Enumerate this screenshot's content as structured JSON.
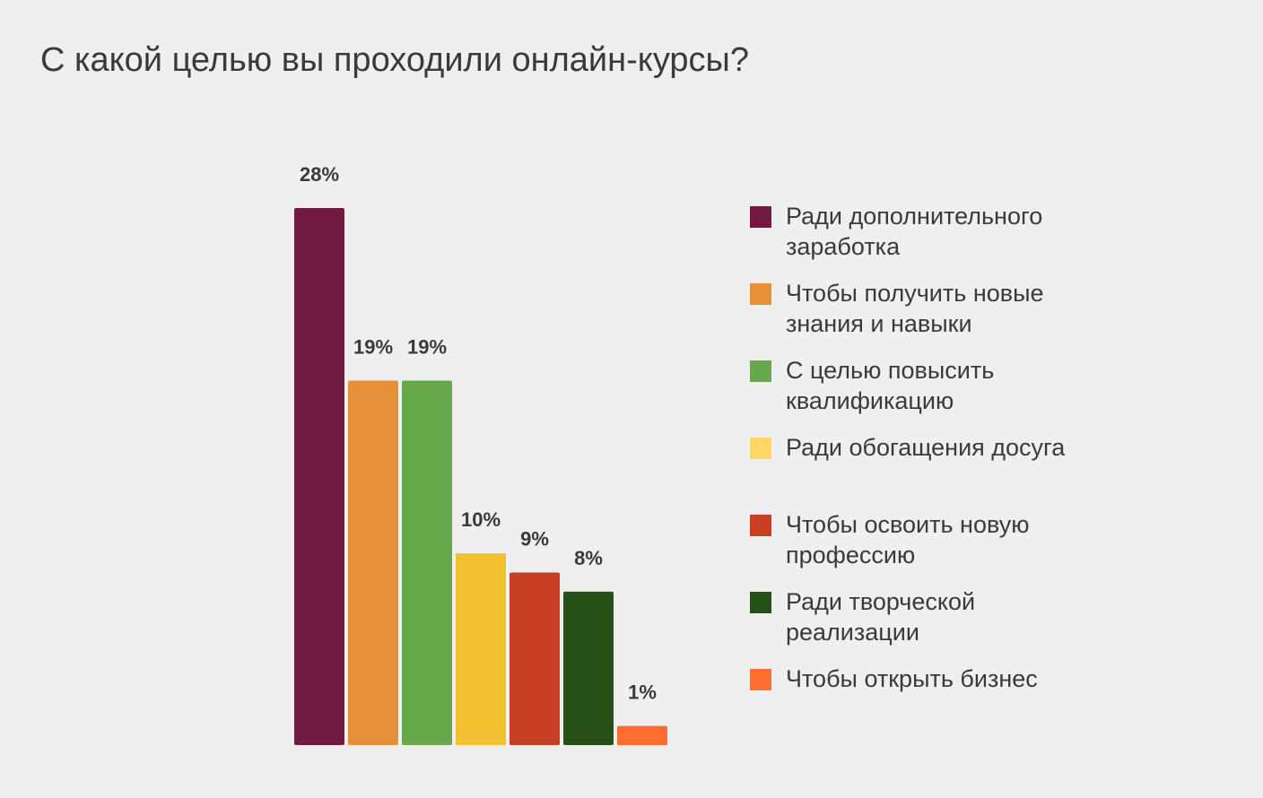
{
  "chart_data": {
    "type": "bar",
    "title": "С какой целью вы проходили онлайн-курсы?",
    "categories": [
      "Ради дополнительного заработка",
      "Чтобы получить новые знания и навыки",
      "С целью повысить квалификацию",
      "Ради обогащения досуга",
      "Чтобы освоить новую профессию",
      "Ради творческой реализации",
      "Чтобы открыть бизнес"
    ],
    "values": [
      28,
      19,
      19,
      10,
      9,
      8,
      1
    ],
    "value_labels": [
      "28%",
      "19%",
      "19%",
      "10%",
      "9%",
      "8%",
      "1%"
    ],
    "unit": "%",
    "colors": [
      "#731a42",
      "#e58f36",
      "#68a84c",
      "#f0c230",
      "#c73e25",
      "#264f14",
      "#fd6d32"
    ],
    "legend_colors": [
      "#731a42",
      "#e58f36",
      "#68a84c",
      "#fdd866",
      "#c73e25",
      "#264f14",
      "#fd6d32"
    ],
    "legend_position": "right",
    "grid": false,
    "ylim": [
      0,
      28
    ]
  }
}
